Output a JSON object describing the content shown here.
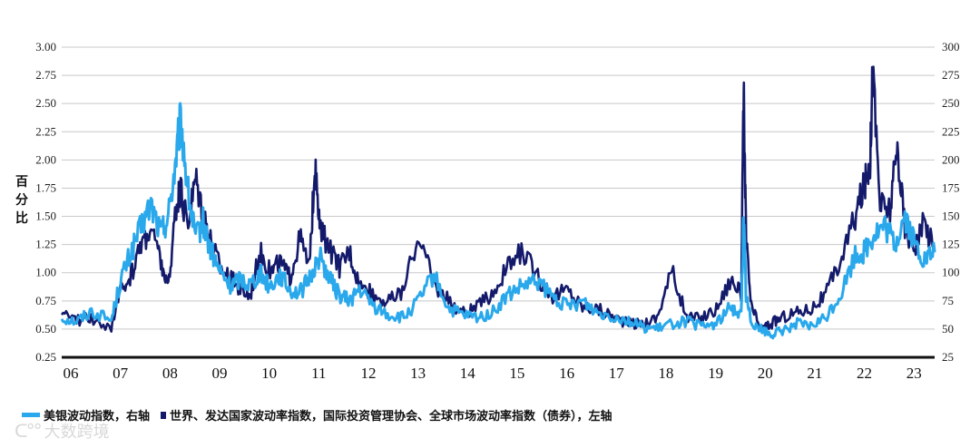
{
  "chart_data": {
    "type": "line",
    "ylabel": "百分比",
    "left_axis": {
      "ticks": [
        "0.25",
        "0.50",
        "0.75",
        "1.00",
        "1.25",
        "1.50",
        "1.75",
        "2.00",
        "2.25",
        "2.50",
        "2.75",
        "3.00"
      ],
      "ylim": [
        0.25,
        3.0
      ]
    },
    "right_axis": {
      "ticks": [
        "25",
        "50",
        "75",
        "100",
        "125",
        "150",
        "175",
        "200",
        "225",
        "250",
        "275",
        "300"
      ],
      "ylim": [
        25,
        300
      ]
    },
    "x_ticks": [
      "06",
      "07",
      "08",
      "09",
      "10",
      "11",
      "12",
      "13",
      "14",
      "15",
      "16",
      "17",
      "18",
      "19",
      "20",
      "21",
      "22",
      "23"
    ],
    "x_range": [
      2006.0,
      2023.6
    ],
    "grid": true,
    "legend_placement": "bottom-left",
    "colors": {
      "bofa": "#29a8ec",
      "iif": "#141a6b",
      "grid": "#c8c8c8",
      "axis": "#111111"
    },
    "series": [
      {
        "name": "美银波动指数，右轴",
        "axis": "right",
        "x": [
          2006.0,
          2006.3,
          2006.6,
          2007.0,
          2007.2,
          2007.4,
          2007.6,
          2007.8,
          2008.0,
          2008.15,
          2008.3,
          2008.4,
          2008.55,
          2008.7,
          2008.85,
          2009.0,
          2009.2,
          2009.4,
          2009.6,
          2009.8,
          2010.0,
          2010.2,
          2010.4,
          2010.6,
          2010.8,
          2011.0,
          2011.2,
          2011.4,
          2011.6,
          2011.8,
          2012.0,
          2012.3,
          2012.6,
          2012.9,
          2013.2,
          2013.5,
          2013.8,
          2014.1,
          2014.4,
          2014.7,
          2015.0,
          2015.3,
          2015.6,
          2015.9,
          2016.2,
          2016.5,
          2016.8,
          2017.1,
          2017.4,
          2017.7,
          2018.0,
          2018.3,
          2018.6,
          2018.9,
          2019.2,
          2019.5,
          2019.7,
          2019.75,
          2019.8,
          2019.9,
          2020.1,
          2020.3,
          2020.5,
          2020.8,
          2021.1,
          2021.4,
          2021.7,
          2022.0,
          2022.2,
          2022.4,
          2022.6,
          2022.8,
          2023.0,
          2023.2,
          2023.4,
          2023.6
        ],
        "values": [
          60,
          57,
          66,
          58,
          95,
          118,
          140,
          160,
          135,
          150,
          200,
          235,
          170,
          130,
          145,
          120,
          100,
          88,
          95,
          90,
          100,
          88,
          98,
          85,
          82,
          95,
          115,
          95,
          80,
          75,
          85,
          70,
          62,
          60,
          75,
          98,
          68,
          62,
          60,
          65,
          80,
          88,
          92,
          78,
          70,
          75,
          65,
          62,
          58,
          52,
          50,
          55,
          57,
          52,
          55,
          70,
          62,
          150,
          78,
          58,
          50,
          45,
          48,
          55,
          52,
          60,
          80,
          115,
          120,
          135,
          140,
          125,
          150,
          125,
          110,
          118
        ]
      },
      {
        "name": "世界、发达国家波动率指数，国际投资管理协会、全球市场波动率指数（债券），左轴",
        "axis": "left",
        "x": [
          2006.0,
          2006.3,
          2006.6,
          2007.0,
          2007.2,
          2007.4,
          2007.6,
          2007.8,
          2008.0,
          2008.15,
          2008.3,
          2008.4,
          2008.55,
          2008.7,
          2008.85,
          2009.0,
          2009.2,
          2009.4,
          2009.6,
          2009.8,
          2010.0,
          2010.2,
          2010.4,
          2010.6,
          2010.8,
          2011.0,
          2011.1,
          2011.2,
          2011.4,
          2011.6,
          2011.8,
          2012.0,
          2012.3,
          2012.6,
          2012.9,
          2013.2,
          2013.5,
          2013.8,
          2014.1,
          2014.4,
          2014.7,
          2015.0,
          2015.3,
          2015.6,
          2015.9,
          2016.2,
          2016.5,
          2016.8,
          2017.1,
          2017.4,
          2017.7,
          2018.0,
          2018.3,
          2018.6,
          2018.9,
          2019.2,
          2019.5,
          2019.7,
          2019.75,
          2019.8,
          2019.9,
          2020.1,
          2020.3,
          2020.5,
          2020.8,
          2021.1,
          2021.4,
          2021.7,
          2022.0,
          2022.2,
          2022.3,
          2022.35,
          2022.5,
          2022.7,
          2022.85,
          2023.0,
          2023.2,
          2023.4,
          2023.6
        ],
        "values": [
          0.62,
          0.58,
          0.6,
          0.5,
          0.85,
          0.98,
          1.25,
          1.4,
          1.1,
          0.85,
          1.6,
          1.7,
          1.45,
          1.85,
          1.55,
          1.3,
          1.05,
          0.95,
          0.85,
          0.8,
          1.2,
          1.0,
          1.1,
          0.95,
          1.3,
          1.05,
          1.95,
          1.4,
          1.2,
          1.05,
          1.2,
          0.9,
          0.8,
          0.75,
          0.85,
          1.35,
          0.9,
          0.75,
          0.65,
          0.7,
          0.82,
          1.05,
          1.2,
          0.95,
          0.8,
          0.85,
          0.7,
          0.68,
          0.62,
          0.55,
          0.55,
          0.6,
          1.02,
          0.6,
          0.6,
          0.68,
          0.95,
          0.8,
          2.62,
          1.3,
          0.7,
          0.5,
          0.55,
          0.6,
          0.65,
          0.68,
          0.8,
          1.1,
          1.5,
          1.8,
          2.0,
          2.82,
          1.6,
          1.55,
          2.1,
          1.4,
          1.25,
          1.45,
          1.2
        ]
      }
    ]
  },
  "legend": {
    "bofa_label": "美银波动指数，右轴",
    "iif_label": "世界、发达国家波动率指数，国际投资管理协会、全球市场波动率指数（债券），左轴"
  },
  "watermark": {
    "text": "大数跨境"
  }
}
